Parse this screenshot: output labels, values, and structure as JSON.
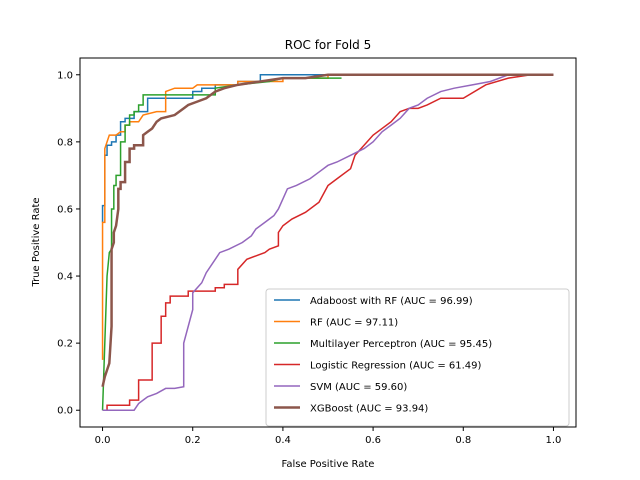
{
  "chart_data": {
    "type": "line",
    "title": "ROC for Fold 5",
    "xlabel": "False Positive Rate",
    "ylabel": "True Positive Rate",
    "xlim": [
      -0.05,
      1.05
    ],
    "ylim": [
      -0.05,
      1.05
    ],
    "xticks": [
      "0.0",
      "0.2",
      "0.4",
      "0.6",
      "0.8",
      "1.0"
    ],
    "yticks": [
      "0.0",
      "0.2",
      "0.4",
      "0.6",
      "0.8",
      "1.0"
    ],
    "grid": false,
    "legend_position": "lower-right",
    "series": [
      {
        "name": "Adaboost with RF (AUC = 96.99)",
        "color": "#1f77b4",
        "width": 1.5,
        "points": [
          [
            0,
            0.56
          ],
          [
            0,
            0.61
          ],
          [
            0.005,
            0.61
          ],
          [
            0.005,
            0.76
          ],
          [
            0.01,
            0.76
          ],
          [
            0.01,
            0.79
          ],
          [
            0.02,
            0.79
          ],
          [
            0.02,
            0.8
          ],
          [
            0.03,
            0.8
          ],
          [
            0.03,
            0.82
          ],
          [
            0.04,
            0.82
          ],
          [
            0.04,
            0.86
          ],
          [
            0.05,
            0.86
          ],
          [
            0.05,
            0.87
          ],
          [
            0.07,
            0.87
          ],
          [
            0.07,
            0.89
          ],
          [
            0.1,
            0.89
          ],
          [
            0.1,
            0.93
          ],
          [
            0.2,
            0.93
          ],
          [
            0.2,
            0.95
          ],
          [
            0.22,
            0.95
          ],
          [
            0.22,
            0.96
          ],
          [
            0.25,
            0.96
          ],
          [
            0.25,
            0.97
          ],
          [
            0.3,
            0.97
          ],
          [
            0.3,
            0.98
          ],
          [
            0.35,
            0.98
          ],
          [
            0.35,
            1.0
          ],
          [
            1.0,
            1.0
          ]
        ]
      },
      {
        "name": "RF (AUC = 97.11)",
        "color": "#ff7f0e",
        "width": 1.5,
        "points": [
          [
            0,
            0.15
          ],
          [
            0,
            0.56
          ],
          [
            0.005,
            0.56
          ],
          [
            0.005,
            0.78
          ],
          [
            0.01,
            0.8
          ],
          [
            0.015,
            0.82
          ],
          [
            0.03,
            0.82
          ],
          [
            0.04,
            0.83
          ],
          [
            0.05,
            0.83
          ],
          [
            0.05,
            0.85
          ],
          [
            0.06,
            0.85
          ],
          [
            0.06,
            0.86
          ],
          [
            0.08,
            0.86
          ],
          [
            0.09,
            0.88
          ],
          [
            0.12,
            0.89
          ],
          [
            0.14,
            0.89
          ],
          [
            0.14,
            0.95
          ],
          [
            0.16,
            0.96
          ],
          [
            0.2,
            0.96
          ],
          [
            0.21,
            0.97
          ],
          [
            0.3,
            0.97
          ],
          [
            0.3,
            0.98
          ],
          [
            0.4,
            0.98
          ],
          [
            0.4,
            0.99
          ],
          [
            0.5,
            0.99
          ],
          [
            0.5,
            1.0
          ],
          [
            1.0,
            1.0
          ]
        ]
      },
      {
        "name": "Multilayer Perceptron (AUC = 95.45)",
        "color": "#2ca02c",
        "width": 1.5,
        "points": [
          [
            0,
            0
          ],
          [
            0.005,
            0.2
          ],
          [
            0.01,
            0.4
          ],
          [
            0.015,
            0.47
          ],
          [
            0.02,
            0.48
          ],
          [
            0.02,
            0.6
          ],
          [
            0.025,
            0.6
          ],
          [
            0.025,
            0.67
          ],
          [
            0.03,
            0.67
          ],
          [
            0.03,
            0.7
          ],
          [
            0.04,
            0.7
          ],
          [
            0.04,
            0.8
          ],
          [
            0.05,
            0.8
          ],
          [
            0.05,
            0.85
          ],
          [
            0.06,
            0.85
          ],
          [
            0.06,
            0.88
          ],
          [
            0.07,
            0.88
          ],
          [
            0.07,
            0.89
          ],
          [
            0.08,
            0.89
          ],
          [
            0.08,
            0.91
          ],
          [
            0.09,
            0.91
          ],
          [
            0.09,
            0.94
          ],
          [
            0.14,
            0.94
          ],
          [
            0.14,
            0.94
          ],
          [
            0.25,
            0.94
          ],
          [
            0.25,
            0.96
          ],
          [
            0.3,
            0.97
          ],
          [
            0.37,
            0.98
          ],
          [
            0.4,
            0.99
          ],
          [
            0.53,
            0.99
          ]
        ]
      },
      {
        "name": "Logistic Regression (AUC = 61.49)",
        "color": "#d62728",
        "width": 1.5,
        "points": [
          [
            0.01,
            0
          ],
          [
            0.01,
            0.015
          ],
          [
            0.06,
            0.015
          ],
          [
            0.06,
            0.03
          ],
          [
            0.08,
            0.03
          ],
          [
            0.08,
            0.09
          ],
          [
            0.11,
            0.09
          ],
          [
            0.11,
            0.2
          ],
          [
            0.13,
            0.2
          ],
          [
            0.13,
            0.28
          ],
          [
            0.14,
            0.28
          ],
          [
            0.14,
            0.32
          ],
          [
            0.15,
            0.32
          ],
          [
            0.15,
            0.34
          ],
          [
            0.19,
            0.34
          ],
          [
            0.19,
            0.355
          ],
          [
            0.25,
            0.355
          ],
          [
            0.25,
            0.365
          ],
          [
            0.27,
            0.365
          ],
          [
            0.27,
            0.375
          ],
          [
            0.3,
            0.375
          ],
          [
            0.3,
            0.42
          ],
          [
            0.32,
            0.45
          ],
          [
            0.34,
            0.46
          ],
          [
            0.36,
            0.47
          ],
          [
            0.37,
            0.48
          ],
          [
            0.39,
            0.49
          ],
          [
            0.39,
            0.53
          ],
          [
            0.4,
            0.55
          ],
          [
            0.42,
            0.57
          ],
          [
            0.45,
            0.59
          ],
          [
            0.48,
            0.62
          ],
          [
            0.5,
            0.67
          ],
          [
            0.52,
            0.69
          ],
          [
            0.55,
            0.72
          ],
          [
            0.56,
            0.76
          ],
          [
            0.58,
            0.79
          ],
          [
            0.6,
            0.82
          ],
          [
            0.62,
            0.84
          ],
          [
            0.64,
            0.86
          ],
          [
            0.66,
            0.89
          ],
          [
            0.68,
            0.9
          ],
          [
            0.7,
            0.9
          ],
          [
            0.72,
            0.91
          ],
          [
            0.75,
            0.93
          ],
          [
            0.8,
            0.93
          ],
          [
            0.85,
            0.97
          ],
          [
            0.9,
            0.99
          ],
          [
            0.95,
            1.0
          ],
          [
            1.0,
            1.0
          ]
        ]
      },
      {
        "name": "SVM (AUC = 59.60)",
        "color": "#9467bd",
        "width": 1.5,
        "points": [
          [
            0,
            0
          ],
          [
            0.07,
            0
          ],
          [
            0.08,
            0.02
          ],
          [
            0.09,
            0.03
          ],
          [
            0.1,
            0.04
          ],
          [
            0.12,
            0.05
          ],
          [
            0.14,
            0.065
          ],
          [
            0.16,
            0.065
          ],
          [
            0.18,
            0.07
          ],
          [
            0.18,
            0.2
          ],
          [
            0.2,
            0.3
          ],
          [
            0.2,
            0.35
          ],
          [
            0.22,
            0.38
          ],
          [
            0.23,
            0.41
          ],
          [
            0.25,
            0.45
          ],
          [
            0.26,
            0.47
          ],
          [
            0.28,
            0.48
          ],
          [
            0.31,
            0.5
          ],
          [
            0.33,
            0.52
          ],
          [
            0.34,
            0.54
          ],
          [
            0.36,
            0.56
          ],
          [
            0.37,
            0.57
          ],
          [
            0.38,
            0.58
          ],
          [
            0.39,
            0.6
          ],
          [
            0.4,
            0.63
          ],
          [
            0.41,
            0.66
          ],
          [
            0.43,
            0.67
          ],
          [
            0.46,
            0.69
          ],
          [
            0.48,
            0.71
          ],
          [
            0.5,
            0.73
          ],
          [
            0.52,
            0.74
          ],
          [
            0.55,
            0.76
          ],
          [
            0.58,
            0.78
          ],
          [
            0.6,
            0.8
          ],
          [
            0.62,
            0.83
          ],
          [
            0.64,
            0.85
          ],
          [
            0.66,
            0.87
          ],
          [
            0.68,
            0.9
          ],
          [
            0.7,
            0.91
          ],
          [
            0.72,
            0.93
          ],
          [
            0.75,
            0.95
          ],
          [
            0.78,
            0.96
          ],
          [
            0.82,
            0.97
          ],
          [
            0.86,
            0.98
          ],
          [
            0.9,
            1.0
          ],
          [
            1.0,
            1.0
          ]
        ]
      },
      {
        "name": "XGBoost (AUC = 93.94)",
        "color": "#8c564b",
        "width": 2.5,
        "points": [
          [
            0,
            0.07
          ],
          [
            0.005,
            0.1
          ],
          [
            0.01,
            0.12
          ],
          [
            0.015,
            0.14
          ],
          [
            0.02,
            0.25
          ],
          [
            0.02,
            0.48
          ],
          [
            0.025,
            0.5
          ],
          [
            0.025,
            0.53
          ],
          [
            0.03,
            0.55
          ],
          [
            0.035,
            0.6
          ],
          [
            0.035,
            0.66
          ],
          [
            0.04,
            0.66
          ],
          [
            0.04,
            0.68
          ],
          [
            0.05,
            0.68
          ],
          [
            0.05,
            0.74
          ],
          [
            0.06,
            0.74
          ],
          [
            0.06,
            0.78
          ],
          [
            0.07,
            0.78
          ],
          [
            0.07,
            0.79
          ],
          [
            0.09,
            0.79
          ],
          [
            0.09,
            0.82
          ],
          [
            0.1,
            0.83
          ],
          [
            0.11,
            0.84
          ],
          [
            0.12,
            0.86
          ],
          [
            0.13,
            0.87
          ],
          [
            0.16,
            0.88
          ],
          [
            0.18,
            0.9
          ],
          [
            0.19,
            0.91
          ],
          [
            0.21,
            0.92
          ],
          [
            0.23,
            0.93
          ],
          [
            0.25,
            0.95
          ],
          [
            0.27,
            0.96
          ],
          [
            0.3,
            0.97
          ],
          [
            0.35,
            0.98
          ],
          [
            0.4,
            0.99
          ],
          [
            0.45,
            0.99
          ],
          [
            0.5,
            1.0
          ],
          [
            1.0,
            1.0
          ]
        ]
      }
    ]
  }
}
